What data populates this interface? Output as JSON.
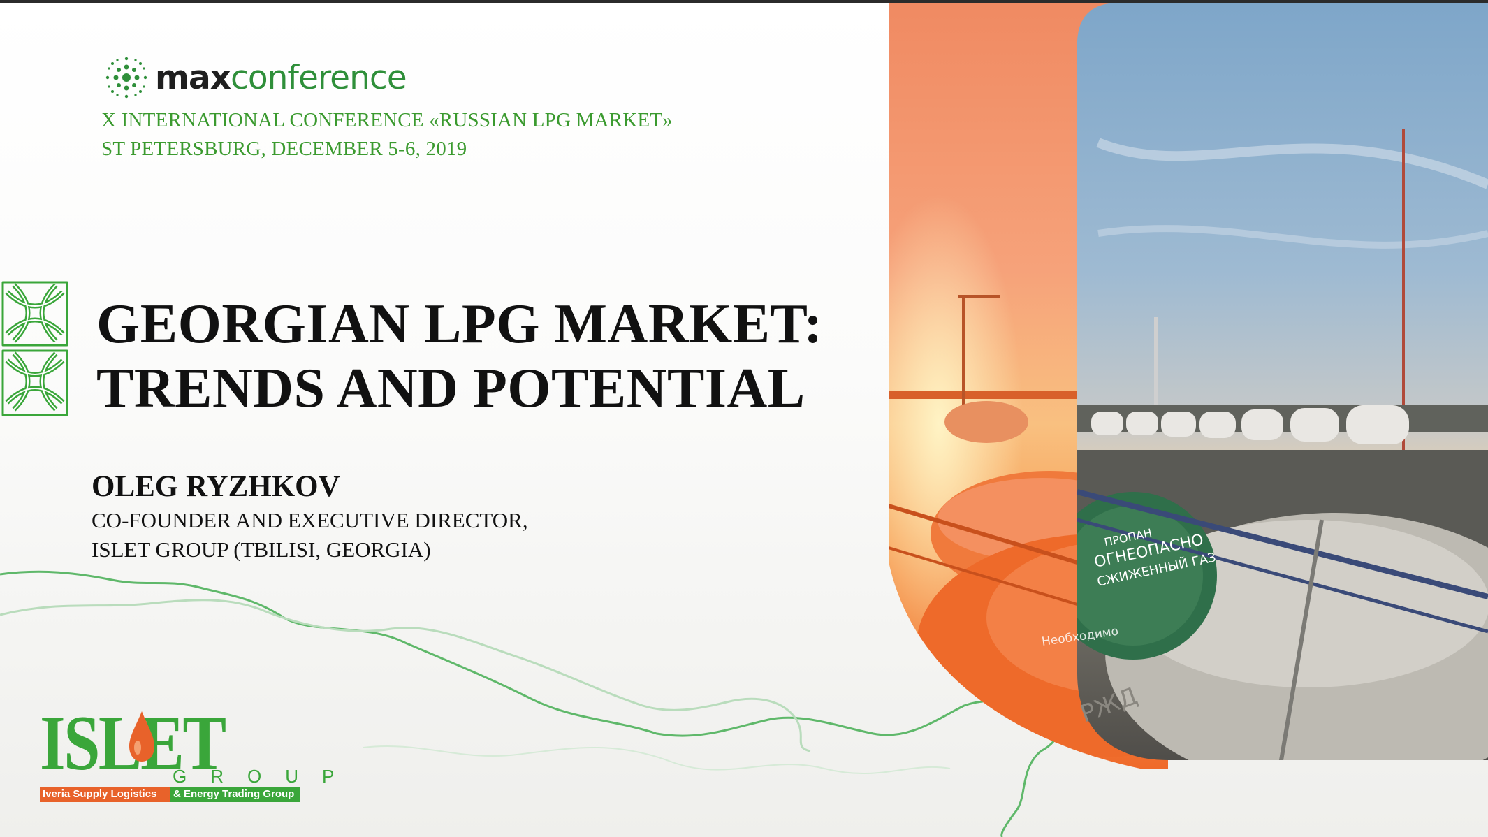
{
  "logo": {
    "max": "max",
    "conference": "conference"
  },
  "conference": {
    "line1": "X INTERNATIONAL CONFERENCE «RUSSIAN LPG MARKET»",
    "line2": "ST PETERSBURG, DECEMBER 5-6, 2019"
  },
  "title": {
    "line1": "GEORGIAN LPG MARKET:",
    "line2": "TRENDS AND POTENTIAL"
  },
  "speaker": {
    "name": "OLEG RYZHKOV",
    "role1": "CO-FOUNDER AND EXECUTIVE DIRECTOR,",
    "role2": "ISLET GROUP (TBILISI, GEORGIA)"
  },
  "islet_logo": {
    "word": "ISLET",
    "group": "GROUP",
    "tag_a": "Iveria Supply Logistics",
    "tag_b": "& Energy Trading Group"
  },
  "photo": {
    "tank_text1": "ПРОПАН",
    "tank_text2": "ОГНЕОПАСНО",
    "tank_text3": "СЖИЖЕННЫЙ ГАЗ",
    "tank_text4": "Необходимо",
    "tank_text5": "РЖД"
  },
  "colors": {
    "green": "#3b9a2f",
    "orange": "#f07030",
    "dark": "#111111"
  }
}
